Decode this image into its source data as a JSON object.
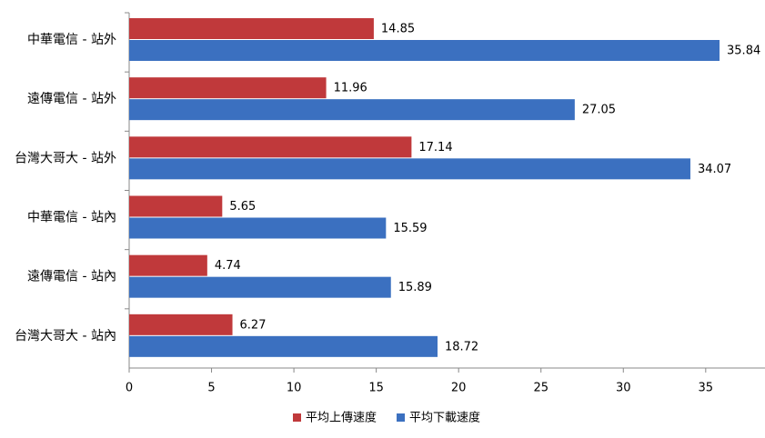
{
  "chart_data": {
    "type": "hbar",
    "categories": [
      "中華電信 - 站外",
      "遠傳電信 - 站外",
      "台灣大哥大 - 站外",
      "中華電信 - 站內",
      "遠傳電信 - 站內",
      "台灣大哥大 - 站內"
    ],
    "series": [
      {
        "name": "平均上傳速度",
        "color": "#c0393b",
        "values": [
          14.85,
          11.96,
          17.14,
          5.65,
          4.74,
          6.27
        ]
      },
      {
        "name": "平均下載速度",
        "color": "#3b70c0",
        "values": [
          35.84,
          27.05,
          34.07,
          15.59,
          15.89,
          18.72
        ]
      }
    ],
    "xlim": [
      0,
      38.6
    ],
    "xticks": [
      0,
      5,
      10,
      15,
      20,
      25,
      30,
      35
    ],
    "legend": "bottom"
  }
}
